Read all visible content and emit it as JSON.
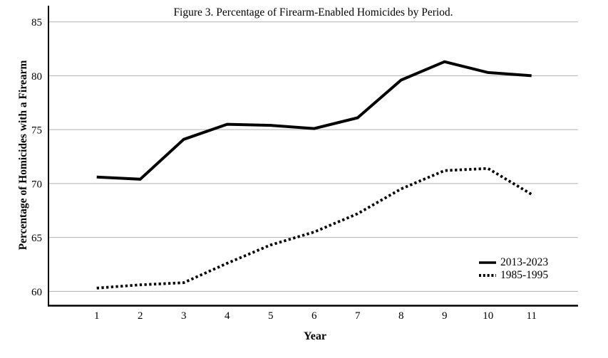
{
  "chart_data": {
    "type": "line",
    "title": "Figure 3. Percentage of Firearm-Enabled Homicides by Period.",
    "xlabel": "Year",
    "ylabel": "Percentage of Homicides with a Firearm",
    "x": [
      1,
      2,
      3,
      4,
      5,
      6,
      7,
      8,
      9,
      10,
      11
    ],
    "series": [
      {
        "name": "2013-2023",
        "style": "solid",
        "values": [
          70.6,
          70.4,
          74.1,
          75.5,
          75.4,
          75.1,
          76.1,
          79.6,
          81.3,
          80.3,
          80.0
        ]
      },
      {
        "name": "1985-1995",
        "style": "dotted",
        "values": [
          60.3,
          60.6,
          60.8,
          62.6,
          64.3,
          65.5,
          67.2,
          69.5,
          71.2,
          71.4,
          69.0
        ]
      }
    ],
    "yticks": [
      60,
      65,
      70,
      75,
      80,
      85
    ],
    "ylim": [
      58.7,
      86.5
    ],
    "xlim": [
      -0.11,
      12.07
    ],
    "grid": "horizontal",
    "legend_position": "inside-right-lower",
    "colors": {
      "line": "#000000",
      "grid": "#b0b0b0",
      "text": "#000000",
      "background": "#ffffff"
    }
  }
}
